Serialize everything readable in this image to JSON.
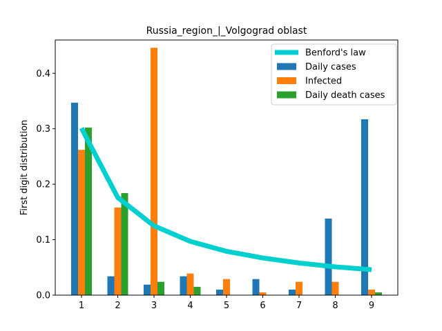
{
  "chart_data": {
    "type": "bar",
    "title": "Russia_region_|_Volgograd oblast",
    "xlabel": "",
    "ylabel": "First digit distribution",
    "categories": [
      "1",
      "2",
      "3",
      "4",
      "5",
      "6",
      "7",
      "8",
      "9"
    ],
    "ylim": [
      0,
      0.46
    ],
    "yticks": [
      "0.0",
      "0.1",
      "0.2",
      "0.3",
      "0.4"
    ],
    "grid": false,
    "legend_position": "top-right",
    "series": [
      {
        "name": "Daily cases",
        "kind": "bar",
        "color": "#1f77b4",
        "values": [
          0.347,
          0.034,
          0.019,
          0.034,
          0.01,
          0.029,
          0.01,
          0.138,
          0.317
        ]
      },
      {
        "name": "Infected",
        "kind": "bar",
        "color": "#ff7f0e",
        "values": [
          0.262,
          0.158,
          0.446,
          0.039,
          0.029,
          0.005,
          0.024,
          0.024,
          0.01
        ]
      },
      {
        "name": "Daily death cases",
        "kind": "bar",
        "color": "#2ca02c",
        "values": [
          0.302,
          0.184,
          0.024,
          0.015,
          0.0,
          0.0,
          0.0,
          0.0,
          0.005
        ]
      }
    ],
    "reference_line": {
      "name": "Benford's law",
      "kind": "line",
      "color": "#00cfcf",
      "values": [
        0.301,
        0.176,
        0.125,
        0.097,
        0.079,
        0.067,
        0.058,
        0.051,
        0.046
      ]
    }
  }
}
